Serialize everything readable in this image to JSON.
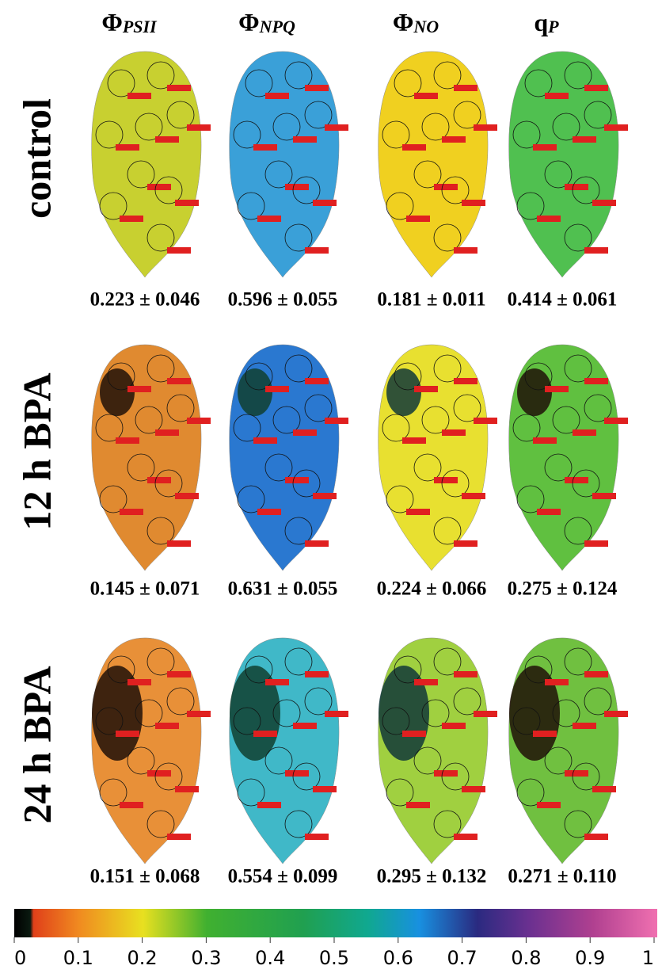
{
  "columns": [
    {
      "symbol": "Φ",
      "subscript": "PSII"
    },
    {
      "symbol": "Φ",
      "subscript": "NPQ"
    },
    {
      "symbol": "Φ",
      "subscript": "NO"
    },
    {
      "symbol": "q",
      "subscript": "P"
    }
  ],
  "rows": [
    {
      "label": "control",
      "values": [
        "0.223 ± 0.046",
        "0.596 ± 0.055",
        "0.181 ± 0.011",
        "0.414 ± 0.061"
      ]
    },
    {
      "label": "12 h BPA",
      "values": [
        "0.145 ± 0.071",
        "0.631 ± 0.055",
        "0.224 ± 0.066",
        "0.275 ± 0.124"
      ]
    },
    {
      "label": "24 h BPA",
      "values": [
        "0.151 ± 0.068",
        "0.554 ± 0.099",
        "0.295 ± 0.132",
        "0.271 ± 0.110"
      ]
    }
  ],
  "colorbar": {
    "ticks": [
      0,
      0.1,
      0.2,
      0.3,
      0.4,
      0.5,
      0.6,
      0.7,
      0.8,
      0.9,
      1
    ]
  }
}
